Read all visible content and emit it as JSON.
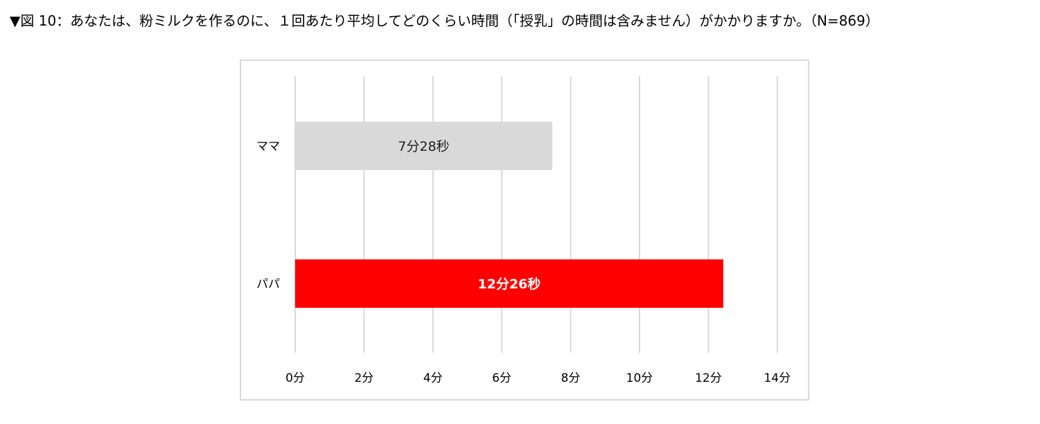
{
  "title": "▼図 10：あなたは、粉ミルクを作るのに、１回あたり平均してどのくらい時間（「授乳」の時間は含みません）がかかりますか。（N=869）",
  "chart_data": {
    "type": "bar",
    "orientation": "horizontal",
    "categories": [
      "ママ",
      "パパ"
    ],
    "values": [
      7.467,
      12.433
    ],
    "value_unit": "分",
    "data_labels": [
      "7分28秒",
      "12分26秒"
    ],
    "bar_colors": [
      "#d9d9d9",
      "#ff0000"
    ],
    "label_colors": [
      "#222222",
      "#ffffff"
    ],
    "label_bold": [
      false,
      true
    ],
    "x_ticks": [
      "0分",
      "2分",
      "4分",
      "6分",
      "8分",
      "10分",
      "12分",
      "14分"
    ],
    "xlim": [
      0,
      14
    ],
    "grid": true,
    "legend": "none",
    "xlabel": "",
    "ylabel": ""
  }
}
